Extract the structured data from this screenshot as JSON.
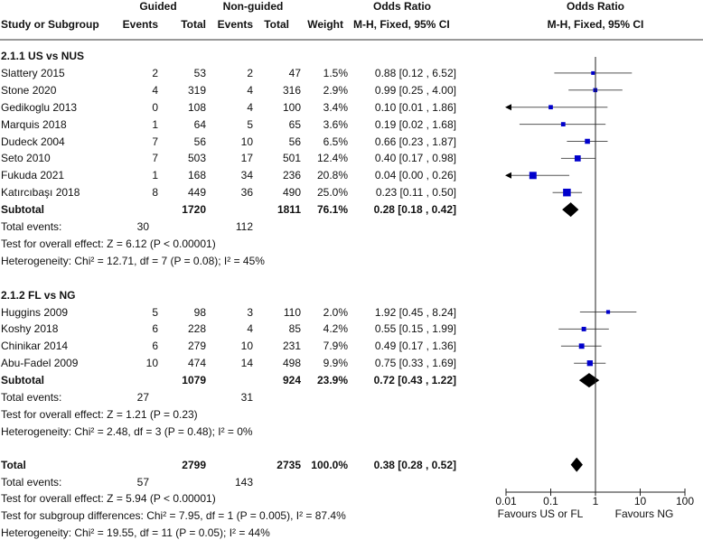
{
  "headers": {
    "guided": "Guided",
    "nonguided": "Non-guided",
    "or1": "Odds Ratio",
    "or2": "Odds Ratio",
    "study": "Study or Subgroup",
    "ev1": "Events",
    "tot1": "Total",
    "ev2": "Events",
    "tot2": "Total",
    "weight": "Weight",
    "method1": "M-H, Fixed, 95% CI",
    "method2": "M-H, Fixed, 95% CI"
  },
  "colors": {
    "square": "#0000cc",
    "diamond": "#000000",
    "line": "#555555"
  },
  "chart_data": {
    "type": "forest",
    "xscale": "log",
    "xlim": [
      0.01,
      100
    ],
    "ticks": [
      "0.01",
      "0.1",
      "1",
      "10",
      "100"
    ],
    "xlabel_left": "Favours US or FL",
    "xlabel_right": "Favours NG",
    "groups": [
      {
        "title": "2.1.1 US vs NUS",
        "studies": [
          {
            "name": "Slattery 2015",
            "e1": "2",
            "t1": "53",
            "e2": "2",
            "t2": "47",
            "w": "1.5%",
            "ci": "0.88 [0.12 , 6.52]",
            "or": 0.88,
            "lo": 0.12,
            "hi": 6.52,
            "wt": 1.5
          },
          {
            "name": "Stone 2020",
            "e1": "4",
            "t1": "319",
            "e2": "4",
            "t2": "316",
            "w": "2.9%",
            "ci": "0.99 [0.25 , 4.00]",
            "or": 0.99,
            "lo": 0.25,
            "hi": 4.0,
            "wt": 2.9
          },
          {
            "name": "Gedikoglu 2013",
            "e1": "0",
            "t1": "108",
            "e2": "4",
            "t2": "100",
            "w": "3.4%",
            "ci": "0.10 [0.01 , 1.86]",
            "or": 0.1,
            "lo": 0.005,
            "hi": 1.86,
            "wt": 3.4
          },
          {
            "name": "Marquis 2018",
            "e1": "1",
            "t1": "64",
            "e2": "5",
            "t2": "65",
            "w": "3.6%",
            "ci": "0.19 [0.02 , 1.68]",
            "or": 0.19,
            "lo": 0.02,
            "hi": 1.68,
            "wt": 3.6
          },
          {
            "name": "Dudeck 2004",
            "e1": "7",
            "t1": "56",
            "e2": "10",
            "t2": "56",
            "w": "6.5%",
            "ci": "0.66 [0.23 , 1.87]",
            "or": 0.66,
            "lo": 0.23,
            "hi": 1.87,
            "wt": 6.5
          },
          {
            "name": "Seto 2010",
            "e1": "7",
            "t1": "503",
            "e2": "17",
            "t2": "501",
            "w": "12.4%",
            "ci": "0.40 [0.17 , 0.98]",
            "or": 0.4,
            "lo": 0.17,
            "hi": 0.98,
            "wt": 12.4
          },
          {
            "name": "Fukuda 2021",
            "e1": "1",
            "t1": "168",
            "e2": "34",
            "t2": "236",
            "w": "20.8%",
            "ci": "0.04 [0.00 , 0.26]",
            "or": 0.04,
            "lo": 0.001,
            "hi": 0.26,
            "wt": 20.8
          },
          {
            "name": "Katırcıbaşı 2018",
            "e1": "8",
            "t1": "449",
            "e2": "36",
            "t2": "490",
            "w": "25.0%",
            "ci": "0.23 [0.11 , 0.50]",
            "or": 0.23,
            "lo": 0.11,
            "hi": 0.5,
            "wt": 25.0
          }
        ],
        "subtotal": {
          "label": "Subtotal",
          "t1": "1720",
          "t2": "1811",
          "w": "76.1%",
          "ci": "0.28 [0.18 , 0.42]",
          "or": 0.28,
          "lo": 0.18,
          "hi": 0.42
        },
        "events": {
          "label": "Total events:",
          "e1": "30",
          "e2": "112"
        },
        "notes": [
          "Test for overall effect: Z = 6.12 (P < 0.00001)",
          "Heterogeneity: Chi² = 12.71, df = 7 (P = 0.08); I² = 45%"
        ]
      },
      {
        "title": "2.1.2 FL vs NG",
        "studies": [
          {
            "name": "Huggins 2009",
            "e1": "5",
            "t1": "98",
            "e2": "3",
            "t2": "110",
            "w": "2.0%",
            "ci": "1.92 [0.45 , 8.24]",
            "or": 1.92,
            "lo": 0.45,
            "hi": 8.24,
            "wt": 2.0
          },
          {
            "name": "Koshy 2018",
            "e1": "6",
            "t1": "228",
            "e2": "4",
            "t2": "85",
            "w": "4.2%",
            "ci": "0.55 [0.15 , 1.99]",
            "or": 0.55,
            "lo": 0.15,
            "hi": 1.99,
            "wt": 4.2
          },
          {
            "name": "Chinikar 2014",
            "e1": "6",
            "t1": "279",
            "e2": "10",
            "t2": "231",
            "w": "7.9%",
            "ci": "0.49 [0.17 , 1.36]",
            "or": 0.49,
            "lo": 0.17,
            "hi": 1.36,
            "wt": 7.9
          },
          {
            "name": "Abu-Fadel 2009",
            "e1": "10",
            "t1": "474",
            "e2": "14",
            "t2": "498",
            "w": "9.9%",
            "ci": "0.75 [0.33 , 1.69]",
            "or": 0.75,
            "lo": 0.33,
            "hi": 1.69,
            "wt": 9.9
          }
        ],
        "subtotal": {
          "label": "Subtotal",
          "t1": "1079",
          "t2": "924",
          "w": "23.9%",
          "ci": "0.72 [0.43 , 1.22]",
          "or": 0.72,
          "lo": 0.43,
          "hi": 1.22
        },
        "events": {
          "label": "Total events:",
          "e1": "27",
          "e2": "31"
        },
        "notes": [
          "Test for overall effect: Z = 1.21 (P = 0.23)",
          "Heterogeneity: Chi² = 2.48, df = 3 (P = 0.48); I² = 0%"
        ]
      }
    ],
    "total": {
      "label": "Total",
      "t1": "2799",
      "t2": "2735",
      "w": "100.0%",
      "ci": "0.38 [0.28 , 0.52]",
      "or": 0.38,
      "lo": 0.28,
      "hi": 0.52
    },
    "total_events": {
      "label": "Total events:",
      "e1": "57",
      "e2": "143"
    },
    "total_notes": [
      "Test for overall effect: Z = 5.94 (P < 0.00001)",
      "Test for subgroup differences: Chi² = 7.95, df = 1 (P = 0.005), I² = 87.4%",
      "Heterogeneity: Chi² = 19.55, df = 11 (P = 0.05); I² = 44%"
    ]
  }
}
